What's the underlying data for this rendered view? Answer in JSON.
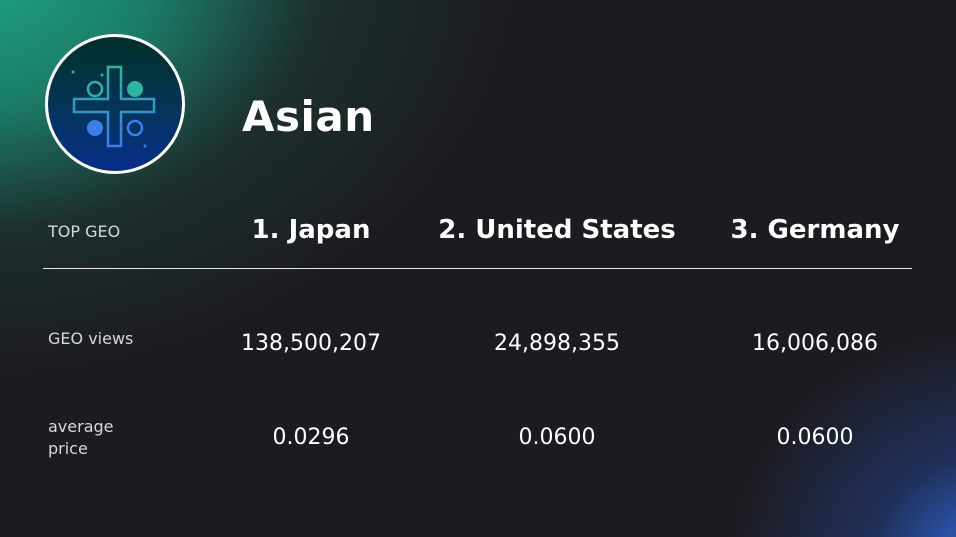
{
  "title": "Asian",
  "logo_icon": "medical-cross-icon",
  "header": {
    "label": "TOP GEO",
    "columns": [
      "1. Japan",
      "2. United States",
      "3. Germany"
    ]
  },
  "rows": [
    {
      "label": "GEO views",
      "values": [
        "138,500,207",
        "24,898,355",
        "16,006,086"
      ]
    },
    {
      "label": "average price",
      "values": [
        "0.0296",
        "0.0600",
        "0.0600"
      ]
    }
  ]
}
